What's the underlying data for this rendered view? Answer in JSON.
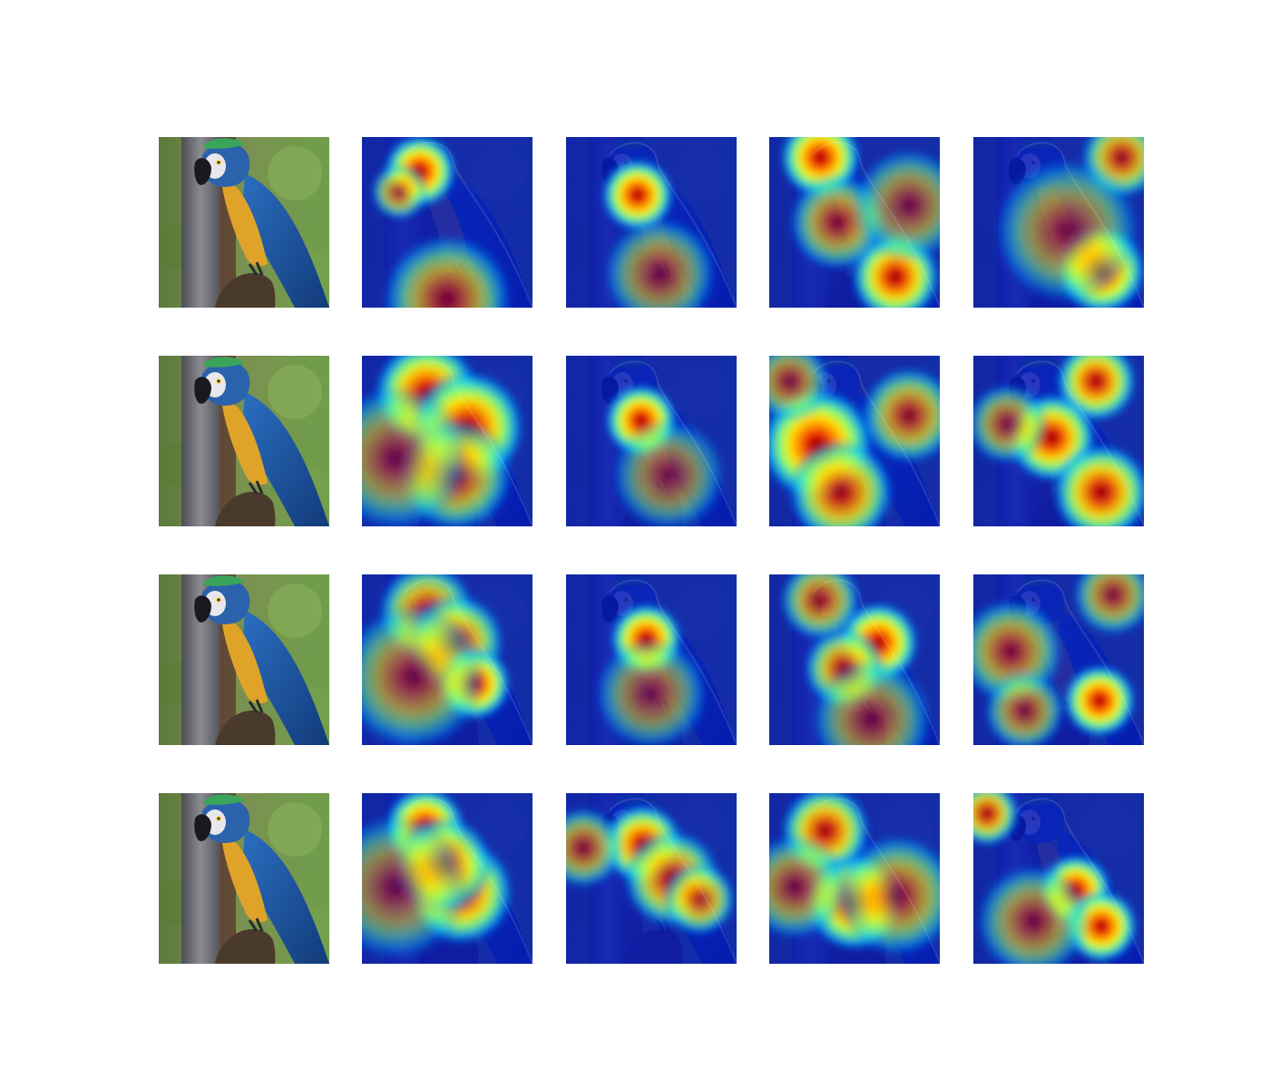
{
  "figure": {
    "grid": {
      "rows": 4,
      "cols": 5
    },
    "overlay_colormap": "jet",
    "overlay_opacity": 0.55,
    "palette": {
      "background": "#ffffff",
      "parrot_blue": "#1f5aa6",
      "parrot_yellow": "#e0a32a",
      "foliage_green": "#6f9e4a",
      "bark_gray": "#6b6b70",
      "heat_low": "#00008f",
      "heat_high": "#800000"
    },
    "rows": [
      {
        "label": "",
        "cells": [
          "original",
          "attention-map",
          "attention-map",
          "attention-map",
          "attention-map"
        ]
      },
      {
        "label": "",
        "cells": [
          "original",
          "attention-map",
          "attention-map",
          "attention-map",
          "attention-map"
        ]
      },
      {
        "label": "",
        "cells": [
          "original",
          "attention-map",
          "attention-map",
          "attention-map",
          "attention-map"
        ]
      },
      {
        "label": "",
        "cells": [
          "original",
          "attention-map",
          "attention-map",
          "attention-map",
          "attention-map"
        ]
      }
    ],
    "hotspots": [
      [
        [],
        [
          {
            "u": 0.34,
            "v": 0.2,
            "s": 0.09,
            "w": 1.0
          },
          {
            "u": 0.22,
            "v": 0.32,
            "s": 0.07,
            "w": 0.55
          },
          {
            "u": 0.5,
            "v": 0.95,
            "s": 0.16,
            "w": 0.45
          }
        ],
        [
          {
            "u": 0.42,
            "v": 0.34,
            "s": 0.09,
            "w": 1.0
          },
          {
            "u": 0.55,
            "v": 0.8,
            "s": 0.14,
            "w": 0.3
          }
        ],
        [
          {
            "u": 0.3,
            "v": 0.12,
            "s": 0.1,
            "w": 1.0
          },
          {
            "u": 0.74,
            "v": 0.82,
            "s": 0.11,
            "w": 0.95
          },
          {
            "u": 0.4,
            "v": 0.5,
            "s": 0.12,
            "w": 0.45
          },
          {
            "u": 0.82,
            "v": 0.4,
            "s": 0.14,
            "w": 0.3
          }
        ],
        [
          {
            "u": 0.75,
            "v": 0.78,
            "s": 0.11,
            "w": 1.0
          },
          {
            "u": 0.87,
            "v": 0.12,
            "s": 0.1,
            "w": 0.7
          },
          {
            "u": 0.55,
            "v": 0.55,
            "s": 0.18,
            "w": 0.3
          }
        ]
      ],
      [
        [],
        [
          {
            "u": 0.38,
            "v": 0.22,
            "s": 0.13,
            "w": 0.95
          },
          {
            "u": 0.62,
            "v": 0.42,
            "s": 0.14,
            "w": 0.95
          },
          {
            "u": 0.55,
            "v": 0.7,
            "s": 0.14,
            "w": 0.55
          },
          {
            "u": 0.2,
            "v": 0.6,
            "s": 0.18,
            "w": 0.3
          }
        ],
        [
          {
            "u": 0.44,
            "v": 0.38,
            "s": 0.09,
            "w": 1.0
          },
          {
            "u": 0.6,
            "v": 0.7,
            "s": 0.14,
            "w": 0.25
          }
        ],
        [
          {
            "u": 0.28,
            "v": 0.52,
            "s": 0.14,
            "w": 1.0
          },
          {
            "u": 0.42,
            "v": 0.8,
            "s": 0.13,
            "w": 0.75
          },
          {
            "u": 0.82,
            "v": 0.35,
            "s": 0.12,
            "w": 0.55
          },
          {
            "u": 0.12,
            "v": 0.15,
            "s": 0.1,
            "w": 0.4
          }
        ],
        [
          {
            "u": 0.72,
            "v": 0.15,
            "s": 0.1,
            "w": 0.9
          },
          {
            "u": 0.46,
            "v": 0.48,
            "s": 0.11,
            "w": 0.95
          },
          {
            "u": 0.75,
            "v": 0.8,
            "s": 0.12,
            "w": 0.9
          },
          {
            "u": 0.2,
            "v": 0.4,
            "s": 0.1,
            "w": 0.4
          }
        ]
      ],
      [
        [],
        [
          {
            "u": 0.38,
            "v": 0.22,
            "s": 0.12,
            "w": 0.7
          },
          {
            "u": 0.55,
            "v": 0.4,
            "s": 0.12,
            "w": 0.75
          },
          {
            "u": 0.66,
            "v": 0.64,
            "s": 0.09,
            "w": 1.0
          },
          {
            "u": 0.3,
            "v": 0.6,
            "s": 0.18,
            "w": 0.35
          }
        ],
        [
          {
            "u": 0.47,
            "v": 0.38,
            "s": 0.09,
            "w": 1.0
          },
          {
            "u": 0.5,
            "v": 0.7,
            "s": 0.14,
            "w": 0.25
          }
        ],
        [
          {
            "u": 0.64,
            "v": 0.4,
            "s": 0.1,
            "w": 1.0
          },
          {
            "u": 0.44,
            "v": 0.55,
            "s": 0.1,
            "w": 0.7
          },
          {
            "u": 0.3,
            "v": 0.15,
            "s": 0.1,
            "w": 0.55
          },
          {
            "u": 0.6,
            "v": 0.85,
            "s": 0.15,
            "w": 0.3
          }
        ],
        [
          {
            "u": 0.74,
            "v": 0.74,
            "s": 0.09,
            "w": 1.0
          },
          {
            "u": 0.22,
            "v": 0.45,
            "s": 0.13,
            "w": 0.45
          },
          {
            "u": 0.82,
            "v": 0.12,
            "s": 0.1,
            "w": 0.45
          },
          {
            "u": 0.3,
            "v": 0.8,
            "s": 0.1,
            "w": 0.4
          }
        ]
      ],
      [
        [],
        [
          {
            "u": 0.37,
            "v": 0.2,
            "s": 0.1,
            "w": 1.0
          },
          {
            "u": 0.58,
            "v": 0.58,
            "s": 0.13,
            "w": 0.9
          },
          {
            "u": 0.48,
            "v": 0.42,
            "s": 0.12,
            "w": 0.8
          },
          {
            "u": 0.2,
            "v": 0.55,
            "s": 0.18,
            "w": 0.25
          }
        ],
        [
          {
            "u": 0.45,
            "v": 0.3,
            "s": 0.1,
            "w": 0.95
          },
          {
            "u": 0.62,
            "v": 0.5,
            "s": 0.12,
            "w": 0.7
          },
          {
            "u": 0.78,
            "v": 0.62,
            "s": 0.09,
            "w": 0.65
          },
          {
            "u": 0.1,
            "v": 0.32,
            "s": 0.1,
            "w": 0.45
          }
        ],
        [
          {
            "u": 0.33,
            "v": 0.22,
            "s": 0.11,
            "w": 0.85
          },
          {
            "u": 0.5,
            "v": 0.64,
            "s": 0.12,
            "w": 0.95
          },
          {
            "u": 0.75,
            "v": 0.6,
            "s": 0.15,
            "w": 0.45
          },
          {
            "u": 0.15,
            "v": 0.55,
            "s": 0.13,
            "w": 0.35
          }
        ],
        [
          {
            "u": 0.08,
            "v": 0.12,
            "s": 0.08,
            "w": 0.8
          },
          {
            "u": 0.6,
            "v": 0.57,
            "s": 0.09,
            "w": 1.0
          },
          {
            "u": 0.75,
            "v": 0.78,
            "s": 0.09,
            "w": 1.0
          },
          {
            "u": 0.35,
            "v": 0.75,
            "s": 0.14,
            "w": 0.35
          }
        ]
      ]
    ]
  }
}
